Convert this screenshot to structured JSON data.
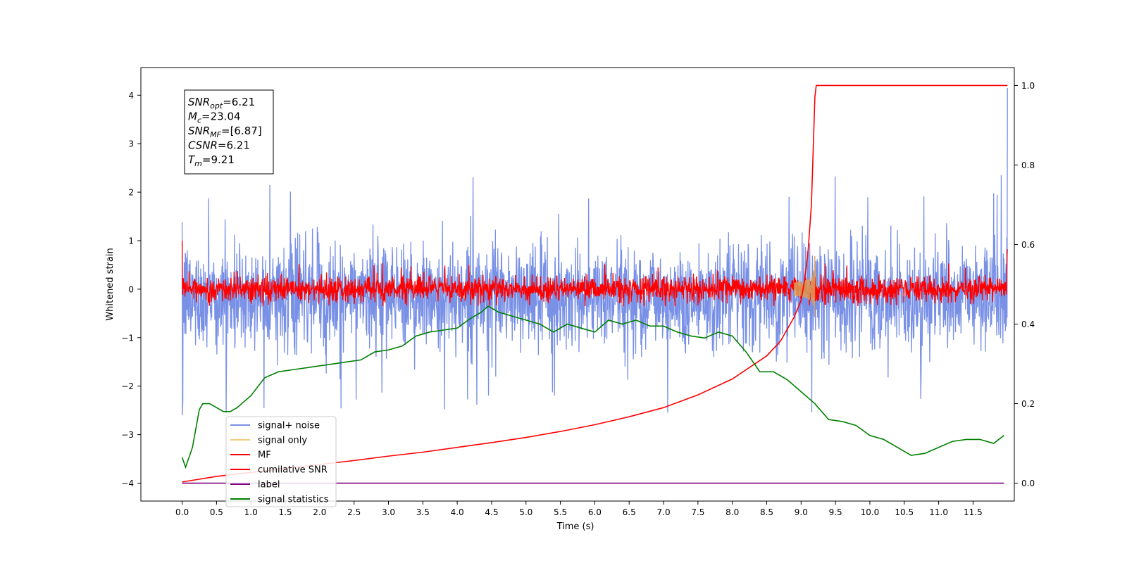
{
  "chart_data": {
    "type": "line",
    "xlabel": "Time (s)",
    "ylabel": "Whitened strain",
    "xlim": [
      -0.6,
      12.1
    ],
    "ylim_left": [
      -4.37,
      4.57
    ],
    "ylim_right": [
      -0.045,
      1.045
    ],
    "x_ticks": [
      0.0,
      0.5,
      1.0,
      1.5,
      2.0,
      2.5,
      3.0,
      3.5,
      4.0,
      4.5,
      5.0,
      5.5,
      6.0,
      6.5,
      7.0,
      7.5,
      8.0,
      8.5,
      9.0,
      9.5,
      10.0,
      10.5,
      11.0,
      11.5
    ],
    "x_tick_labels": [
      "0.0",
      "0.5",
      "1.0",
      "1.5",
      "2.0",
      "2.5",
      "3.0",
      "3.5",
      "4.0",
      "4.5",
      "5.0",
      "5.5",
      "6.0",
      "6.5",
      "7.0",
      "7.5",
      "8.0",
      "8.5",
      "9.0",
      "9.5",
      "10.0",
      "10.5",
      "11.0",
      "11.5"
    ],
    "y_left_ticks": [
      -4,
      -3,
      -2,
      -1,
      0,
      1,
      2,
      3,
      4
    ],
    "y_left_tick_labels": [
      "−4",
      "−3",
      "−2",
      "−1",
      "0",
      "1",
      "2",
      "3",
      "4"
    ],
    "y_right_ticks": [
      0.0,
      0.2,
      0.4,
      0.6,
      0.8,
      1.0
    ],
    "y_right_tick_labels": [
      "0.0",
      "0.2",
      "0.4",
      "0.6",
      "0.8",
      "1.0"
    ],
    "grid": false,
    "legend_position": "lower-left",
    "annotation_box": [
      {
        "base": "SNR",
        "sub": "opt",
        "value": "=6.21"
      },
      {
        "base": "M",
        "sub": "c",
        "value": "=23.04"
      },
      {
        "base": "SNR",
        "sub": "MF",
        "value": "=[6.87]"
      },
      {
        "base": "CSNR",
        "sub": "",
        "value": "=6.21"
      },
      {
        "base": "T",
        "sub": "m",
        "value": "=9.21"
      }
    ],
    "series": [
      {
        "name": "signal+ noise",
        "axis": "left",
        "color": "#7890e6",
        "style": "noise",
        "x_range": [
          0.0,
          12.0
        ],
        "mean": -0.15,
        "typical_range": [
          -1.5,
          1.2
        ],
        "peak_range": [
          -2.6,
          2.35
        ],
        "end_spike": 4.15
      },
      {
        "name": "signal only",
        "axis": "left",
        "color": "#f5cd7a",
        "style": "chirp",
        "x_range": [
          8.9,
          9.25
        ],
        "peak_time": 9.2,
        "amplitude": 0.8
      },
      {
        "name": "MF",
        "axis": "left",
        "color": "#ff0000",
        "style": "noise",
        "x_range": [
          0.0,
          12.0
        ],
        "mean": 0.0,
        "typical_range": [
          -0.25,
          0.3
        ],
        "peak_range": [
          -0.35,
          0.55
        ],
        "start_value": 1.0,
        "end_value": 0.82
      },
      {
        "name": "cumilative SNR",
        "axis": "right",
        "color": "#ff0000",
        "x": [
          0.0,
          0.5,
          1.0,
          1.5,
          2.0,
          2.5,
          3.0,
          3.5,
          4.0,
          4.5,
          5.0,
          5.5,
          6.0,
          6.5,
          7.0,
          7.5,
          8.0,
          8.5,
          8.7,
          8.9,
          9.0,
          9.05,
          9.1,
          9.15,
          9.18,
          9.2,
          9.22,
          12.0
        ],
        "y": [
          0.003,
          0.017,
          0.027,
          0.037,
          0.047,
          0.057,
          0.068,
          0.078,
          0.09,
          0.102,
          0.115,
          0.13,
          0.147,
          0.167,
          0.19,
          0.222,
          0.262,
          0.32,
          0.357,
          0.418,
          0.46,
          0.51,
          0.58,
          0.7,
          0.86,
          0.97,
          1.0,
          1.0
        ]
      },
      {
        "name": "label",
        "axis": "right",
        "color": "#800080",
        "x": [
          0.0,
          11.95
        ],
        "y": [
          0.0,
          0.0
        ]
      },
      {
        "name": "signal statistics",
        "axis": "right",
        "color": "#008000",
        "x": [
          0.0,
          0.05,
          0.15,
          0.25,
          0.3,
          0.4,
          0.5,
          0.6,
          0.7,
          0.8,
          1.0,
          1.2,
          1.4,
          1.6,
          1.8,
          2.0,
          2.2,
          2.4,
          2.6,
          2.8,
          3.0,
          3.2,
          3.4,
          3.6,
          3.8,
          4.0,
          4.2,
          4.35,
          4.45,
          4.6,
          4.8,
          5.0,
          5.2,
          5.4,
          5.6,
          5.8,
          6.0,
          6.2,
          6.4,
          6.6,
          6.8,
          7.0,
          7.2,
          7.4,
          7.6,
          7.8,
          8.0,
          8.2,
          8.4,
          8.6,
          8.8,
          9.0,
          9.2,
          9.4,
          9.6,
          9.8,
          10.0,
          10.2,
          10.4,
          10.6,
          10.8,
          11.0,
          11.2,
          11.4,
          11.6,
          11.8,
          11.95
        ],
        "y": [
          0.065,
          0.04,
          0.09,
          0.185,
          0.2,
          0.2,
          0.19,
          0.18,
          0.18,
          0.19,
          0.22,
          0.265,
          0.28,
          0.285,
          0.29,
          0.295,
          0.3,
          0.305,
          0.31,
          0.33,
          0.335,
          0.345,
          0.37,
          0.38,
          0.385,
          0.39,
          0.415,
          0.43,
          0.445,
          0.43,
          0.42,
          0.41,
          0.4,
          0.38,
          0.4,
          0.39,
          0.38,
          0.41,
          0.4,
          0.41,
          0.395,
          0.395,
          0.38,
          0.37,
          0.365,
          0.38,
          0.37,
          0.33,
          0.28,
          0.28,
          0.26,
          0.23,
          0.2,
          0.16,
          0.155,
          0.145,
          0.12,
          0.11,
          0.09,
          0.07,
          0.075,
          0.09,
          0.105,
          0.11,
          0.11,
          0.1,
          0.12
        ]
      }
    ]
  }
}
